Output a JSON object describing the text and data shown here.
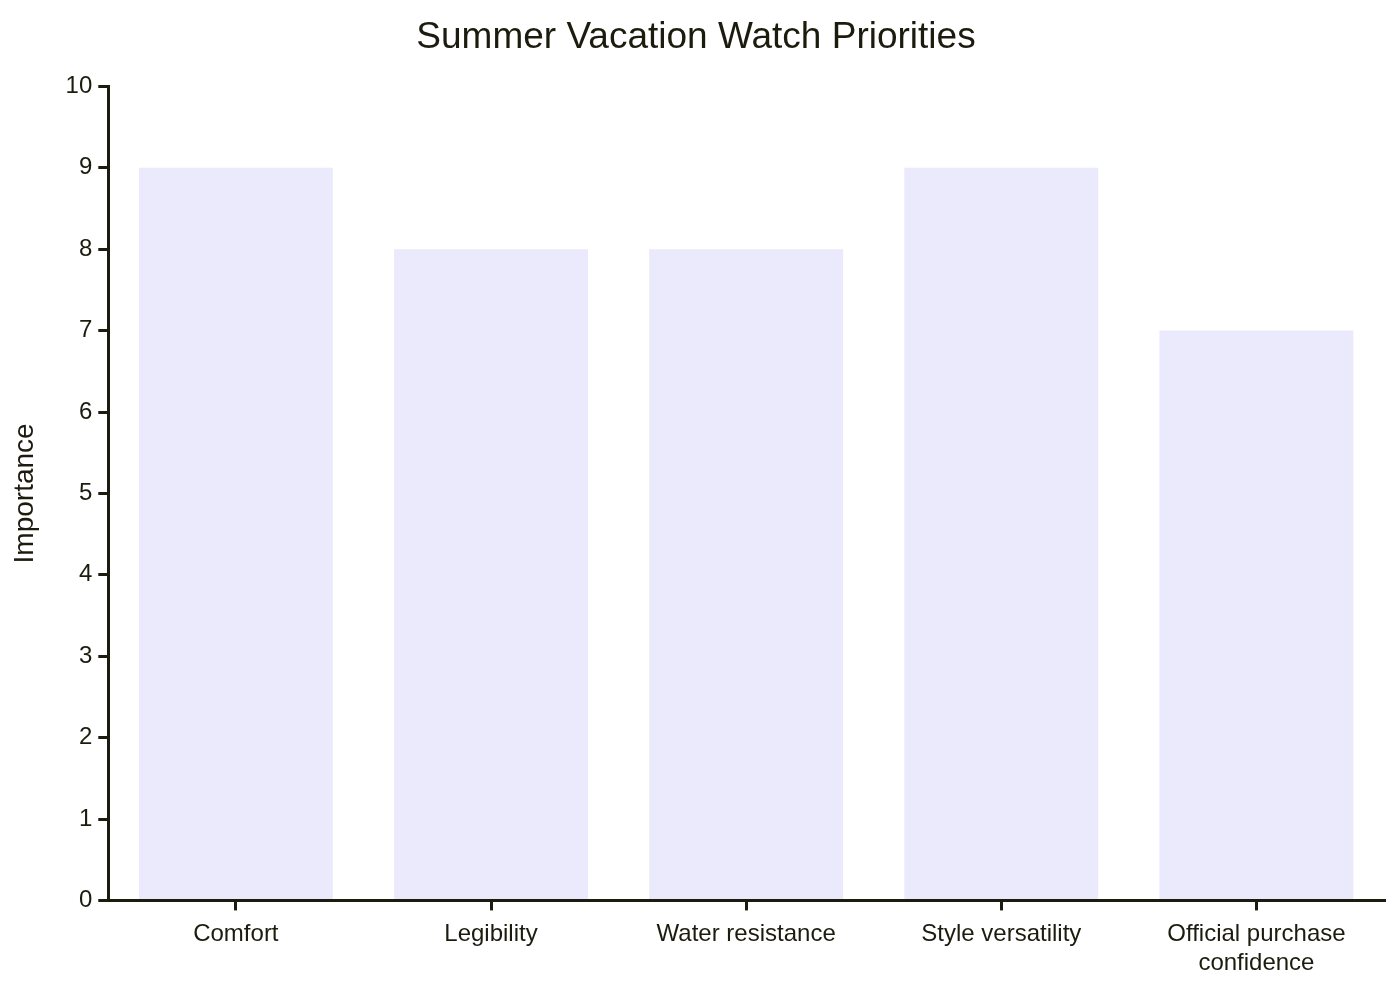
{
  "chart_data": {
    "type": "bar",
    "title": "Summer Vacation Watch Priorities",
    "ylabel": "Importance",
    "categories": [
      "Comfort",
      "Legibility",
      "Water resistance",
      "Style versatility",
      "Official purchase confidence"
    ],
    "values": [
      9,
      8,
      8,
      9,
      7
    ],
    "color": "#ebe9fc",
    "ylim": [
      0,
      10
    ],
    "yticks": [
      0,
      1,
      2,
      3,
      4,
      5,
      6,
      7,
      8,
      9,
      10
    ],
    "grid": false,
    "legend": false
  }
}
